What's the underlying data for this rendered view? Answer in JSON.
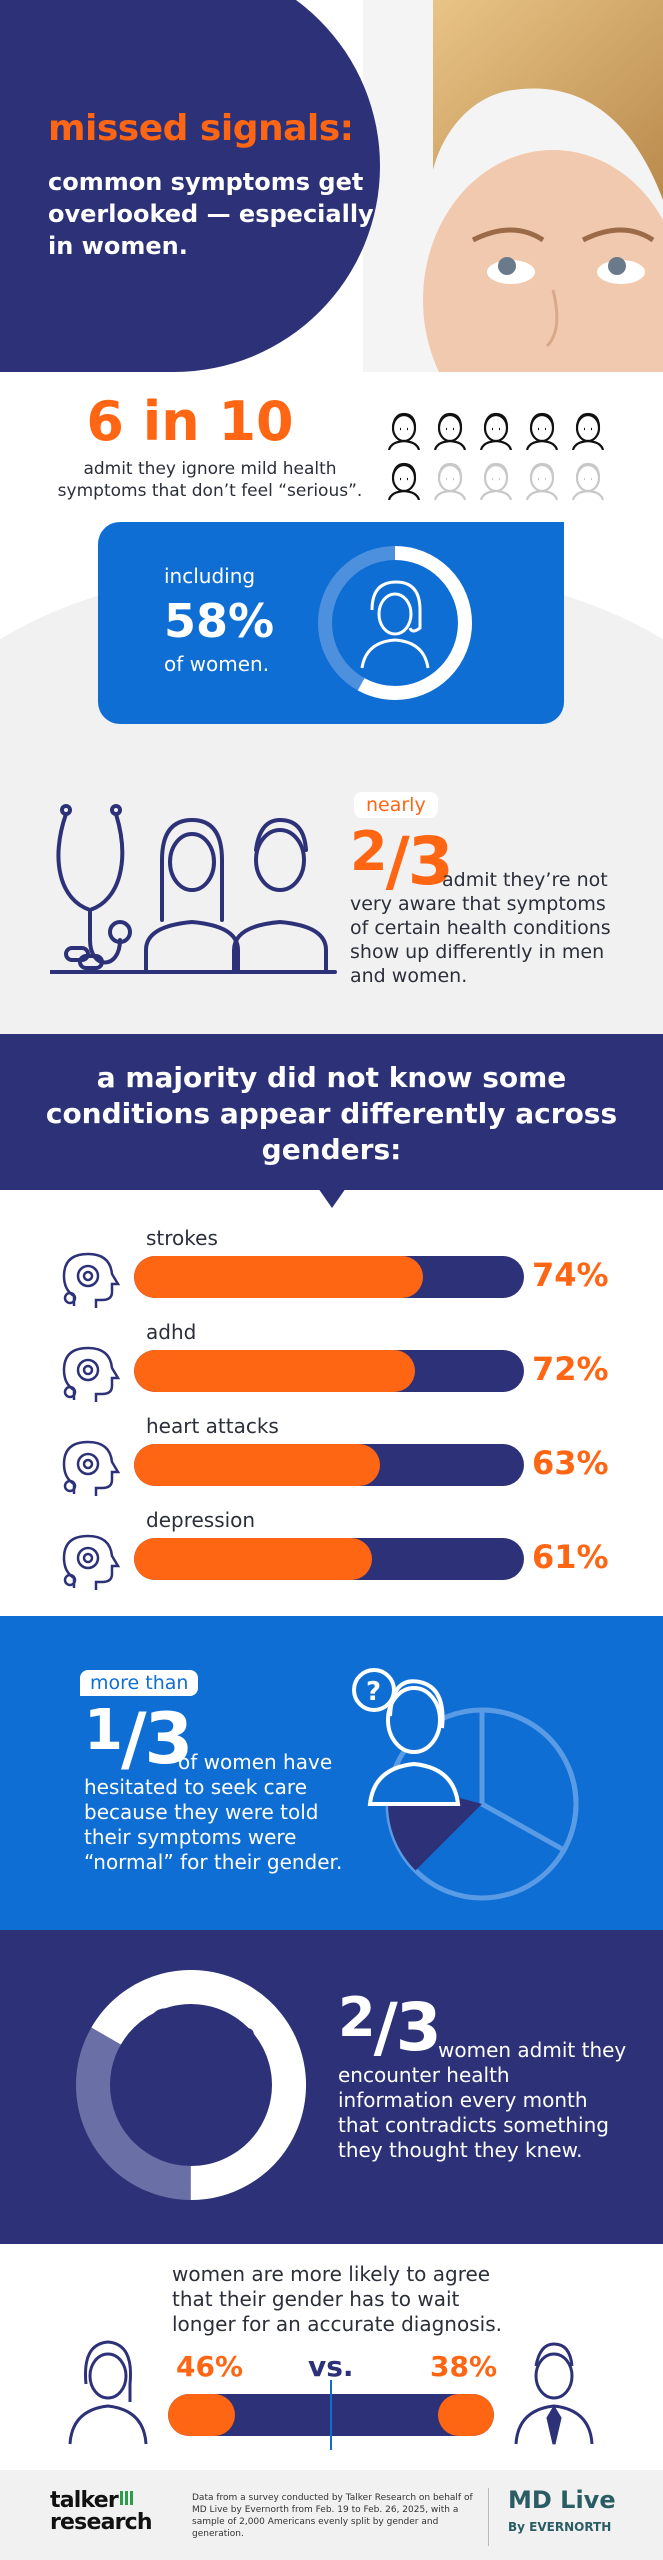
{
  "hero": {
    "title": "missed signals:",
    "subtitle": "common symptoms get overlooked — especially in women."
  },
  "stat_six_in_ten": {
    "headline": "6 in 10",
    "description": "admit they ignore mild health symptoms that don’t feel “serious”.",
    "card": {
      "prefix": "including",
      "value": "58%",
      "suffix": "of women.",
      "fraction": 0.58
    }
  },
  "stat_two_thirds": {
    "badge": "nearly",
    "numerator": "2",
    "denominator": "3",
    "text": "admit they’re not very aware that symptoms of certain health conditions show up differently in men and women."
  },
  "majority": {
    "heading": "a majority did not know some conditions appear differently across genders:"
  },
  "conditions": [
    {
      "label": "strokes",
      "value": "74%",
      "fraction": 0.74,
      "icon": "brain-icon"
    },
    {
      "label": "adhd",
      "value": "72%",
      "fraction": 0.72,
      "icon": "head-target-icon"
    },
    {
      "label": "heart attacks",
      "value": "63%",
      "fraction": 0.63,
      "icon": "heart-icon"
    },
    {
      "label": "depression",
      "value": "61%",
      "fraction": 0.61,
      "icon": "head-storm-icon"
    }
  ],
  "stat_one_third": {
    "badge": "more than",
    "numerator": "1",
    "denominator": "3",
    "text": "of women have hesitated to seek care because they were told their symptoms were “normal” for their gender."
  },
  "stat_encounter": {
    "numerator": "2",
    "denominator": "3",
    "text": "women admit they encounter health information every month that contradicts something they thought they knew."
  },
  "wait": {
    "text": "women are more likely to agree that their gender has to wait longer for an accurate diagnosis.",
    "women_value": "46%",
    "vs": "vs.",
    "men_value": "38%",
    "women_fraction": 0.46,
    "men_fraction": 0.38
  },
  "footer": {
    "brand_line1": "talker",
    "brand_line2": "research",
    "note": "Data from a survey conducted by Talker Research on behalf of MD Live by Evernorth from Feb. 19 to Feb. 26, 2025, with a sample of 2,000 Americans evenly split by gender and generation.",
    "partner": "MD Live",
    "partner_by": "By EVERNORTH"
  },
  "colors": {
    "navy": "#2d3278",
    "orange": "#ff6614",
    "blue": "#0f6ed4"
  }
}
